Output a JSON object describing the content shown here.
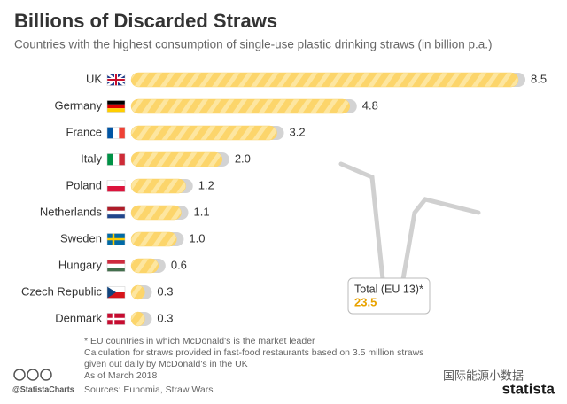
{
  "chart_data": {
    "type": "bar",
    "orientation": "horizontal",
    "title": "Billions of Discarded Straws",
    "subtitle": "Countries with the highest consumption of single-use plastic drinking straws (in billion p.a.)",
    "categories": [
      "UK",
      "Germany",
      "France",
      "Italy",
      "Poland",
      "Netherlands",
      "Sweden",
      "Hungary",
      "Czech Republic",
      "Denmark"
    ],
    "values": [
      8.5,
      4.8,
      3.2,
      2.0,
      1.2,
      1.1,
      1.0,
      0.6,
      0.3,
      0.3
    ],
    "value_labels": [
      "8.5",
      "4.8",
      "3.2",
      "2.0",
      "1.2",
      "1.1",
      "1.0",
      "0.6",
      "0.3",
      "0.3"
    ],
    "color": "#fcd56b",
    "annotation": {
      "text": "Total (EU 13)*",
      "value": 23.5
    },
    "notes": [
      "* EU countries in which McDonald's is the market leader",
      "Calculation for straws provided in fast-food restaurants based on 3.5 million straws",
      "given out daily by McDonald's in the UK",
      "As of March 2018"
    ],
    "source": "Sources: Eunomia, Straw Wars",
    "credit": "@StatistaCharts",
    "brand": "statista",
    "watermark": "国际能源小数据"
  }
}
